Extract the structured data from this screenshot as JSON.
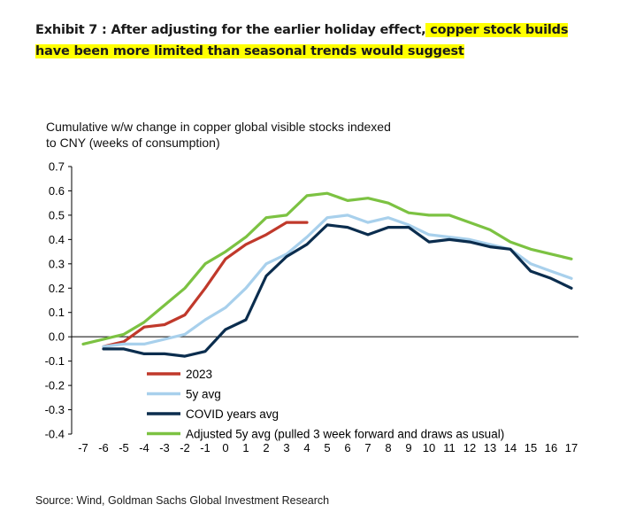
{
  "header": {
    "title_plain": "Exhibit 7 : After adjusting for the earlier holiday effect,",
    "title_highlight": " copper stock builds have been more limited than seasonal trends would suggest"
  },
  "footer": {
    "source": "Source: Wind, Goldman Sachs Global Investment Research"
  },
  "colors": {
    "2023": "#c0392b",
    "5y avg": "#a8d0ec",
    "COVID years avg": "#0b2d4e",
    "Adjusted 5y avg": "#7cc242",
    "highlight": "#ffff00"
  },
  "chart_data": {
    "type": "line",
    "title": "Cumulative w/w change in copper global visible stocks indexed to CNY (weeks of consumption)",
    "xlabel": "",
    "ylabel": "",
    "xlim": [
      -7,
      17
    ],
    "ylim": [
      -0.4,
      0.7
    ],
    "x_ticks": [
      "-7",
      "-6",
      "-5",
      "-4",
      "-3",
      "-2",
      "-1",
      "0",
      "1",
      "2",
      "3",
      "4",
      "5",
      "6",
      "7",
      "8",
      "9",
      "10",
      "11",
      "12",
      "13",
      "14",
      "15",
      "16",
      "17"
    ],
    "y_ticks": [
      "0.7",
      "0.6",
      "0.5",
      "0.4",
      "0.3",
      "0.2",
      "0.1",
      "0.0",
      "-0.1",
      "-0.2",
      "-0.3",
      "-0.4"
    ],
    "grid": false,
    "legend_position": "bottom-left inside plot",
    "series": [
      {
        "name": "2023",
        "color": "#c0392b",
        "x": [
          -6,
          -5,
          -4,
          -3,
          -2,
          -1,
          0,
          1,
          2,
          3,
          4
        ],
        "y": [
          -0.04,
          -0.02,
          0.04,
          0.05,
          0.09,
          0.2,
          0.32,
          0.38,
          0.42,
          0.47,
          0.47
        ]
      },
      {
        "name": "5y avg",
        "color": "#a8d0ec",
        "x": [
          -6,
          -5,
          -4,
          -3,
          -2,
          -1,
          0,
          1,
          2,
          3,
          4,
          5,
          6,
          7,
          8,
          9,
          10,
          11,
          12,
          13,
          14,
          15,
          16,
          17
        ],
        "y": [
          -0.04,
          -0.03,
          -0.03,
          -0.01,
          0.01,
          0.07,
          0.12,
          0.2,
          0.3,
          0.34,
          0.41,
          0.49,
          0.5,
          0.47,
          0.49,
          0.46,
          0.42,
          0.41,
          0.4,
          0.38,
          0.36,
          0.3,
          0.27,
          0.24
        ]
      },
      {
        "name": "COVID years avg",
        "color": "#0b2d4e",
        "x": [
          -6,
          -5,
          -4,
          -3,
          -2,
          -1,
          0,
          1,
          2,
          3,
          4,
          5,
          6,
          7,
          8,
          9,
          10,
          11,
          12,
          13,
          14,
          15,
          16,
          17
        ],
        "y": [
          -0.05,
          -0.05,
          -0.07,
          -0.07,
          -0.08,
          -0.06,
          0.03,
          0.07,
          0.25,
          0.33,
          0.38,
          0.46,
          0.45,
          0.42,
          0.45,
          0.45,
          0.39,
          0.4,
          0.39,
          0.37,
          0.36,
          0.27,
          0.24,
          0.2
        ]
      },
      {
        "name": "Adjusted 5y avg (pulled 3 week forward and draws as usual)",
        "color": "#7cc242",
        "x": [
          -7,
          -6,
          -5,
          -4,
          -3,
          -2,
          -1,
          0,
          1,
          2,
          3,
          4,
          5,
          6,
          7,
          8,
          9,
          10,
          11,
          12,
          13,
          14,
          15,
          16,
          17
        ],
        "y": [
          -0.03,
          -0.01,
          0.01,
          0.06,
          0.13,
          0.2,
          0.3,
          0.35,
          0.41,
          0.49,
          0.5,
          0.58,
          0.59,
          0.56,
          0.57,
          0.55,
          0.51,
          0.5,
          0.5,
          0.47,
          0.44,
          0.39,
          0.36,
          0.34,
          0.32
        ]
      }
    ]
  }
}
